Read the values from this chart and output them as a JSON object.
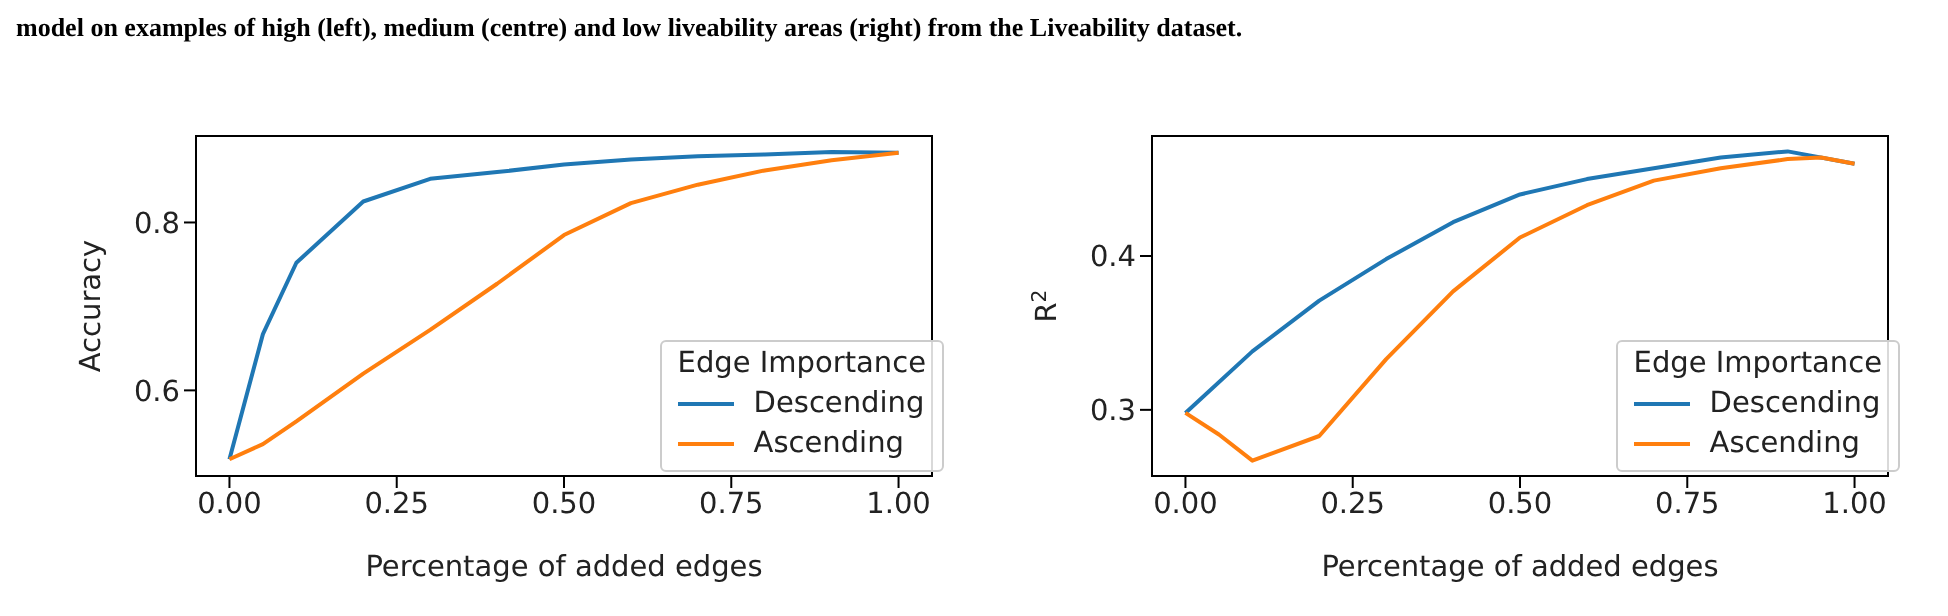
{
  "chart_data": [
    {
      "type": "line",
      "annotations": [
        "model on examples of high (left), medium (centre) and low liveability areas (right) from the Liveability dataset."
      ],
      "xlabel": "Percentage of added edges",
      "ylabel": "Accuracy",
      "legend_title": "Edge Importance",
      "legend": "bottom right",
      "grid": false,
      "xlim": [
        -0.05,
        1.05
      ],
      "xticks": [
        {
          "value": 0,
          "label": "0.00"
        },
        {
          "value": 0.25,
          "label": "0.25"
        },
        {
          "value": 0.5,
          "label": "0.50"
        },
        {
          "value": 0.75,
          "label": "0.75"
        },
        {
          "value": 1,
          "label": "1.00"
        }
      ],
      "ylim": [
        0.498,
        0.903
      ],
      "yticks": [
        0.6,
        0.8
      ],
      "series": [
        {
          "name": "Descending",
          "color": "#1f77b4",
          "x": [
            0,
            0.05,
            0.1,
            0.2,
            0.3,
            0.4,
            0.5,
            0.6,
            0.7,
            0.8,
            0.9,
            1.0
          ],
          "values": [
            0.518,
            0.667,
            0.752,
            0.825,
            0.852,
            0.86,
            0.869,
            0.875,
            0.879,
            0.881,
            0.884,
            0.883
          ]
        },
        {
          "name": "Ascending",
          "color": "#ff7f0e",
          "x": [
            0,
            0.05,
            0.1,
            0.2,
            0.3,
            0.4,
            0.5,
            0.6,
            0.7,
            0.8,
            0.9,
            1.0
          ],
          "values": [
            0.518,
            0.536,
            0.563,
            0.62,
            0.672,
            0.727,
            0.785,
            0.823,
            0.845,
            0.862,
            0.874,
            0.883
          ]
        }
      ]
    },
    {
      "type": "line",
      "xlabel": "Percentage of added edges",
      "ylabel": "R$^{2}$",
      "legend_title": "Edge Importance",
      "legend": "bottom right",
      "grid": false,
      "xlim": [
        -0.05,
        1.05
      ],
      "xticks": [
        {
          "value": 0,
          "label": "0.00"
        },
        {
          "value": 0.25,
          "label": "0.25"
        },
        {
          "value": 0.5,
          "label": "0.50"
        },
        {
          "value": 0.75,
          "label": "0.75"
        },
        {
          "value": 1,
          "label": "1.00"
        }
      ],
      "ylim": [
        0.257,
        0.478
      ],
      "yticks": [
        0.3,
        0.4
      ],
      "series": [
        {
          "name": "Descending",
          "color": "#1f77b4",
          "x": [
            0,
            0.1,
            0.2,
            0.3,
            0.4,
            0.5,
            0.6,
            0.7,
            0.8,
            0.9,
            1.0
          ],
          "values": [
            0.298,
            0.338,
            0.371,
            0.398,
            0.422,
            0.44,
            0.45,
            0.457,
            0.464,
            0.468,
            0.46
          ]
        },
        {
          "name": "Ascending",
          "color": "#ff7f0e",
          "x": [
            0,
            0.05,
            0.1,
            0.2,
            0.3,
            0.4,
            0.5,
            0.6,
            0.7,
            0.8,
            0.9,
            0.95,
            1.0
          ],
          "values": [
            0.298,
            0.284,
            0.267,
            0.283,
            0.333,
            0.377,
            0.412,
            0.433,
            0.449,
            0.457,
            0.463,
            0.464,
            0.46
          ]
        }
      ]
    }
  ]
}
